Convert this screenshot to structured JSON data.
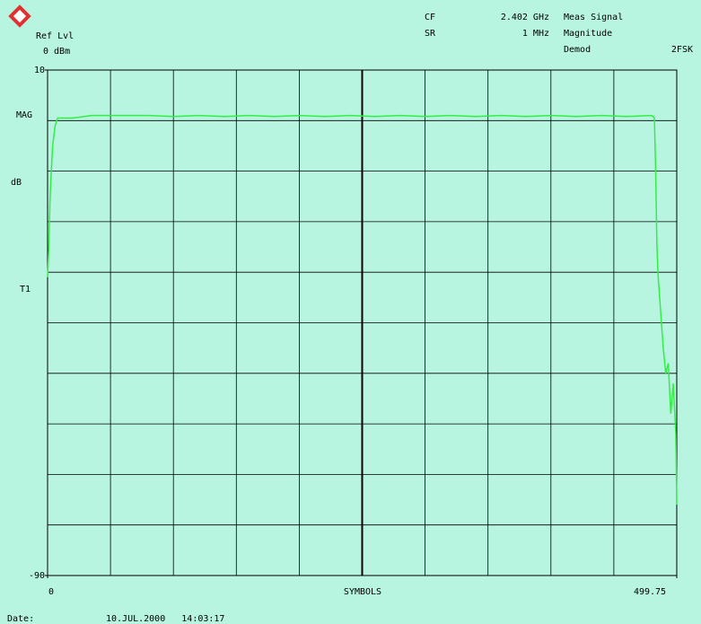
{
  "chart_data": {
    "type": "line",
    "header": {
      "ref_label": "Ref Lvl",
      "ref_value": "0 dBm",
      "cf_label": "CF",
      "cf_value": "2.402 GHz",
      "sr_label": "SR",
      "sr_value": "1 MHz",
      "meas_label": "Meas Signal",
      "meas_value": "Magnitude",
      "demod_label": "Demod",
      "demod_value": "2FSK"
    },
    "annotations": {
      "trace_label": "MAG",
      "unit_label": "dB",
      "trace_id": "T1"
    },
    "x_label": "SYMBOLS",
    "footer": {
      "date_label": "Date:",
      "date_value": "10.JUL.2000   14:03:17"
    },
    "x": [
      0,
      1,
      2,
      3,
      4,
      6,
      8,
      10,
      20,
      35,
      60,
      80,
      100,
      120,
      140,
      160,
      180,
      200,
      220,
      240,
      260,
      280,
      300,
      320,
      340,
      360,
      380,
      400,
      420,
      440,
      460,
      480,
      482,
      483,
      484,
      485,
      487,
      489,
      491,
      493,
      495,
      497,
      499,
      499.75
    ],
    "values": [
      -31,
      -25,
      -15,
      -10,
      -5,
      -1,
      0.5,
      0.5,
      0.5,
      1,
      1,
      1,
      0.8,
      1,
      0.8,
      1,
      0.8,
      1,
      0.8,
      1,
      0.8,
      1,
      0.8,
      1,
      0.8,
      1,
      0.8,
      1,
      0.8,
      1,
      0.8,
      1,
      0.5,
      -10,
      -25,
      -31,
      -38,
      -45,
      -50,
      -48,
      -58,
      -52,
      -62,
      -76
    ],
    "color": "#33ee44",
    "xlim": [
      0,
      499.75
    ],
    "xticks": [
      0,
      499.75
    ],
    "ylim": [
      -90,
      10
    ],
    "yticks": [
      10,
      -90
    ],
    "grid": true
  }
}
